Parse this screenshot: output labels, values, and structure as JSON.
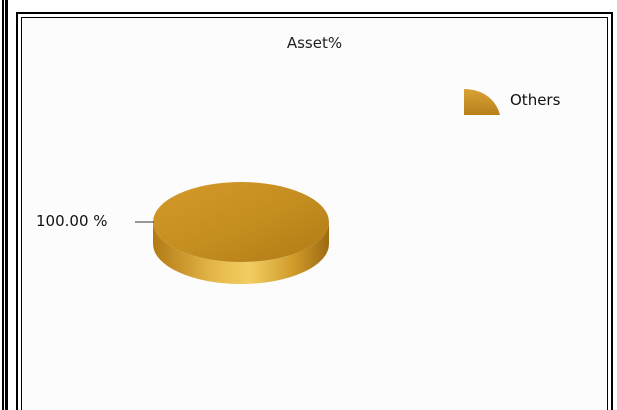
{
  "chart_data": {
    "type": "pie",
    "title": "Asset%",
    "categories": [
      "Others"
    ],
    "values": [
      100.0
    ],
    "data_labels": [
      "100.00 %"
    ],
    "legend": {
      "entries": [
        "Others"
      ],
      "placement": "top-right"
    },
    "colors": {
      "Others": "#c9901c"
    },
    "style": "3d"
  }
}
